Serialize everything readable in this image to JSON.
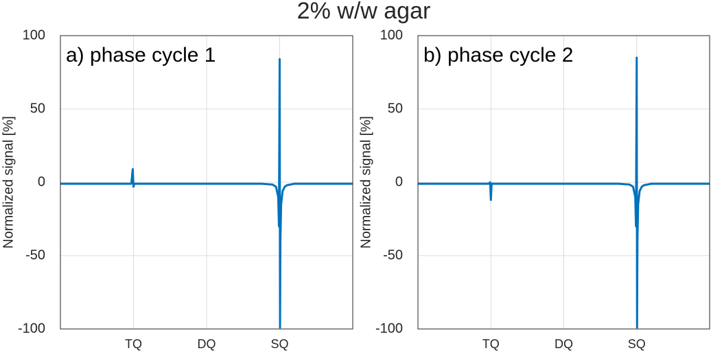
{
  "title": "2% w/w agar",
  "chart_data": [
    {
      "type": "line",
      "annotation": "a) phase cycle 1",
      "ylabel": "Normalized signal [%]",
      "xlim": [
        0,
        4
      ],
      "xticks": [
        {
          "value": 1,
          "label": "TQ"
        },
        {
          "value": 2,
          "label": "DQ"
        },
        {
          "value": 3,
          "label": "SQ"
        }
      ],
      "ylim": [
        -100,
        100
      ],
      "yticks": [
        -100,
        -50,
        0,
        50,
        100
      ],
      "grid": true,
      "color": "#0072bd",
      "x": [
        0,
        0.25,
        0.5,
        0.75,
        0.97,
        0.99,
        1.0,
        1.01,
        1.03,
        1.25,
        1.5,
        1.75,
        2,
        2.25,
        2.5,
        2.75,
        2.9,
        2.95,
        2.98,
        2.99,
        3.0,
        3.005,
        3.01,
        3.02,
        3.04,
        3.07,
        3.1,
        3.2,
        3.3,
        3.5,
        3.75,
        4
      ],
      "values": [
        -1,
        -1,
        -1,
        -1,
        -1,
        9,
        -3,
        -1,
        -1,
        -1,
        -1,
        -1,
        -1,
        -1,
        -1,
        -1,
        -1.5,
        -3,
        -10,
        -30,
        84,
        -99,
        -40,
        -15,
        -6,
        -3,
        -2,
        -1,
        -1,
        -1,
        -1,
        -1
      ]
    },
    {
      "type": "line",
      "annotation": "b) phase cycle 2",
      "ylabel": "Normalized signal [%]",
      "xlim": [
        0,
        4
      ],
      "xticks": [
        {
          "value": 1,
          "label": "TQ"
        },
        {
          "value": 2,
          "label": "DQ"
        },
        {
          "value": 3,
          "label": "SQ"
        }
      ],
      "ylim": [
        -100,
        100
      ],
      "yticks": [
        -100,
        -50,
        0,
        50,
        100
      ],
      "grid": true,
      "color": "#0072bd",
      "x": [
        0,
        0.25,
        0.5,
        0.75,
        0.97,
        0.99,
        1.0,
        1.01,
        1.03,
        1.25,
        1.5,
        1.75,
        2,
        2.25,
        2.5,
        2.75,
        2.9,
        2.95,
        2.98,
        2.99,
        3.0,
        3.005,
        3.01,
        3.02,
        3.04,
        3.07,
        3.1,
        3.2,
        3.3,
        3.5,
        3.75,
        4
      ],
      "values": [
        -1,
        -1,
        -1,
        -1,
        -1,
        0,
        -12,
        -1,
        -1,
        -1,
        -1,
        -1,
        -1,
        -1,
        -1,
        -1,
        -1.5,
        -3,
        -10,
        -30,
        85,
        -99,
        -40,
        -15,
        -6,
        -3,
        -2,
        -1,
        -1,
        -1,
        -1,
        -1
      ]
    }
  ]
}
